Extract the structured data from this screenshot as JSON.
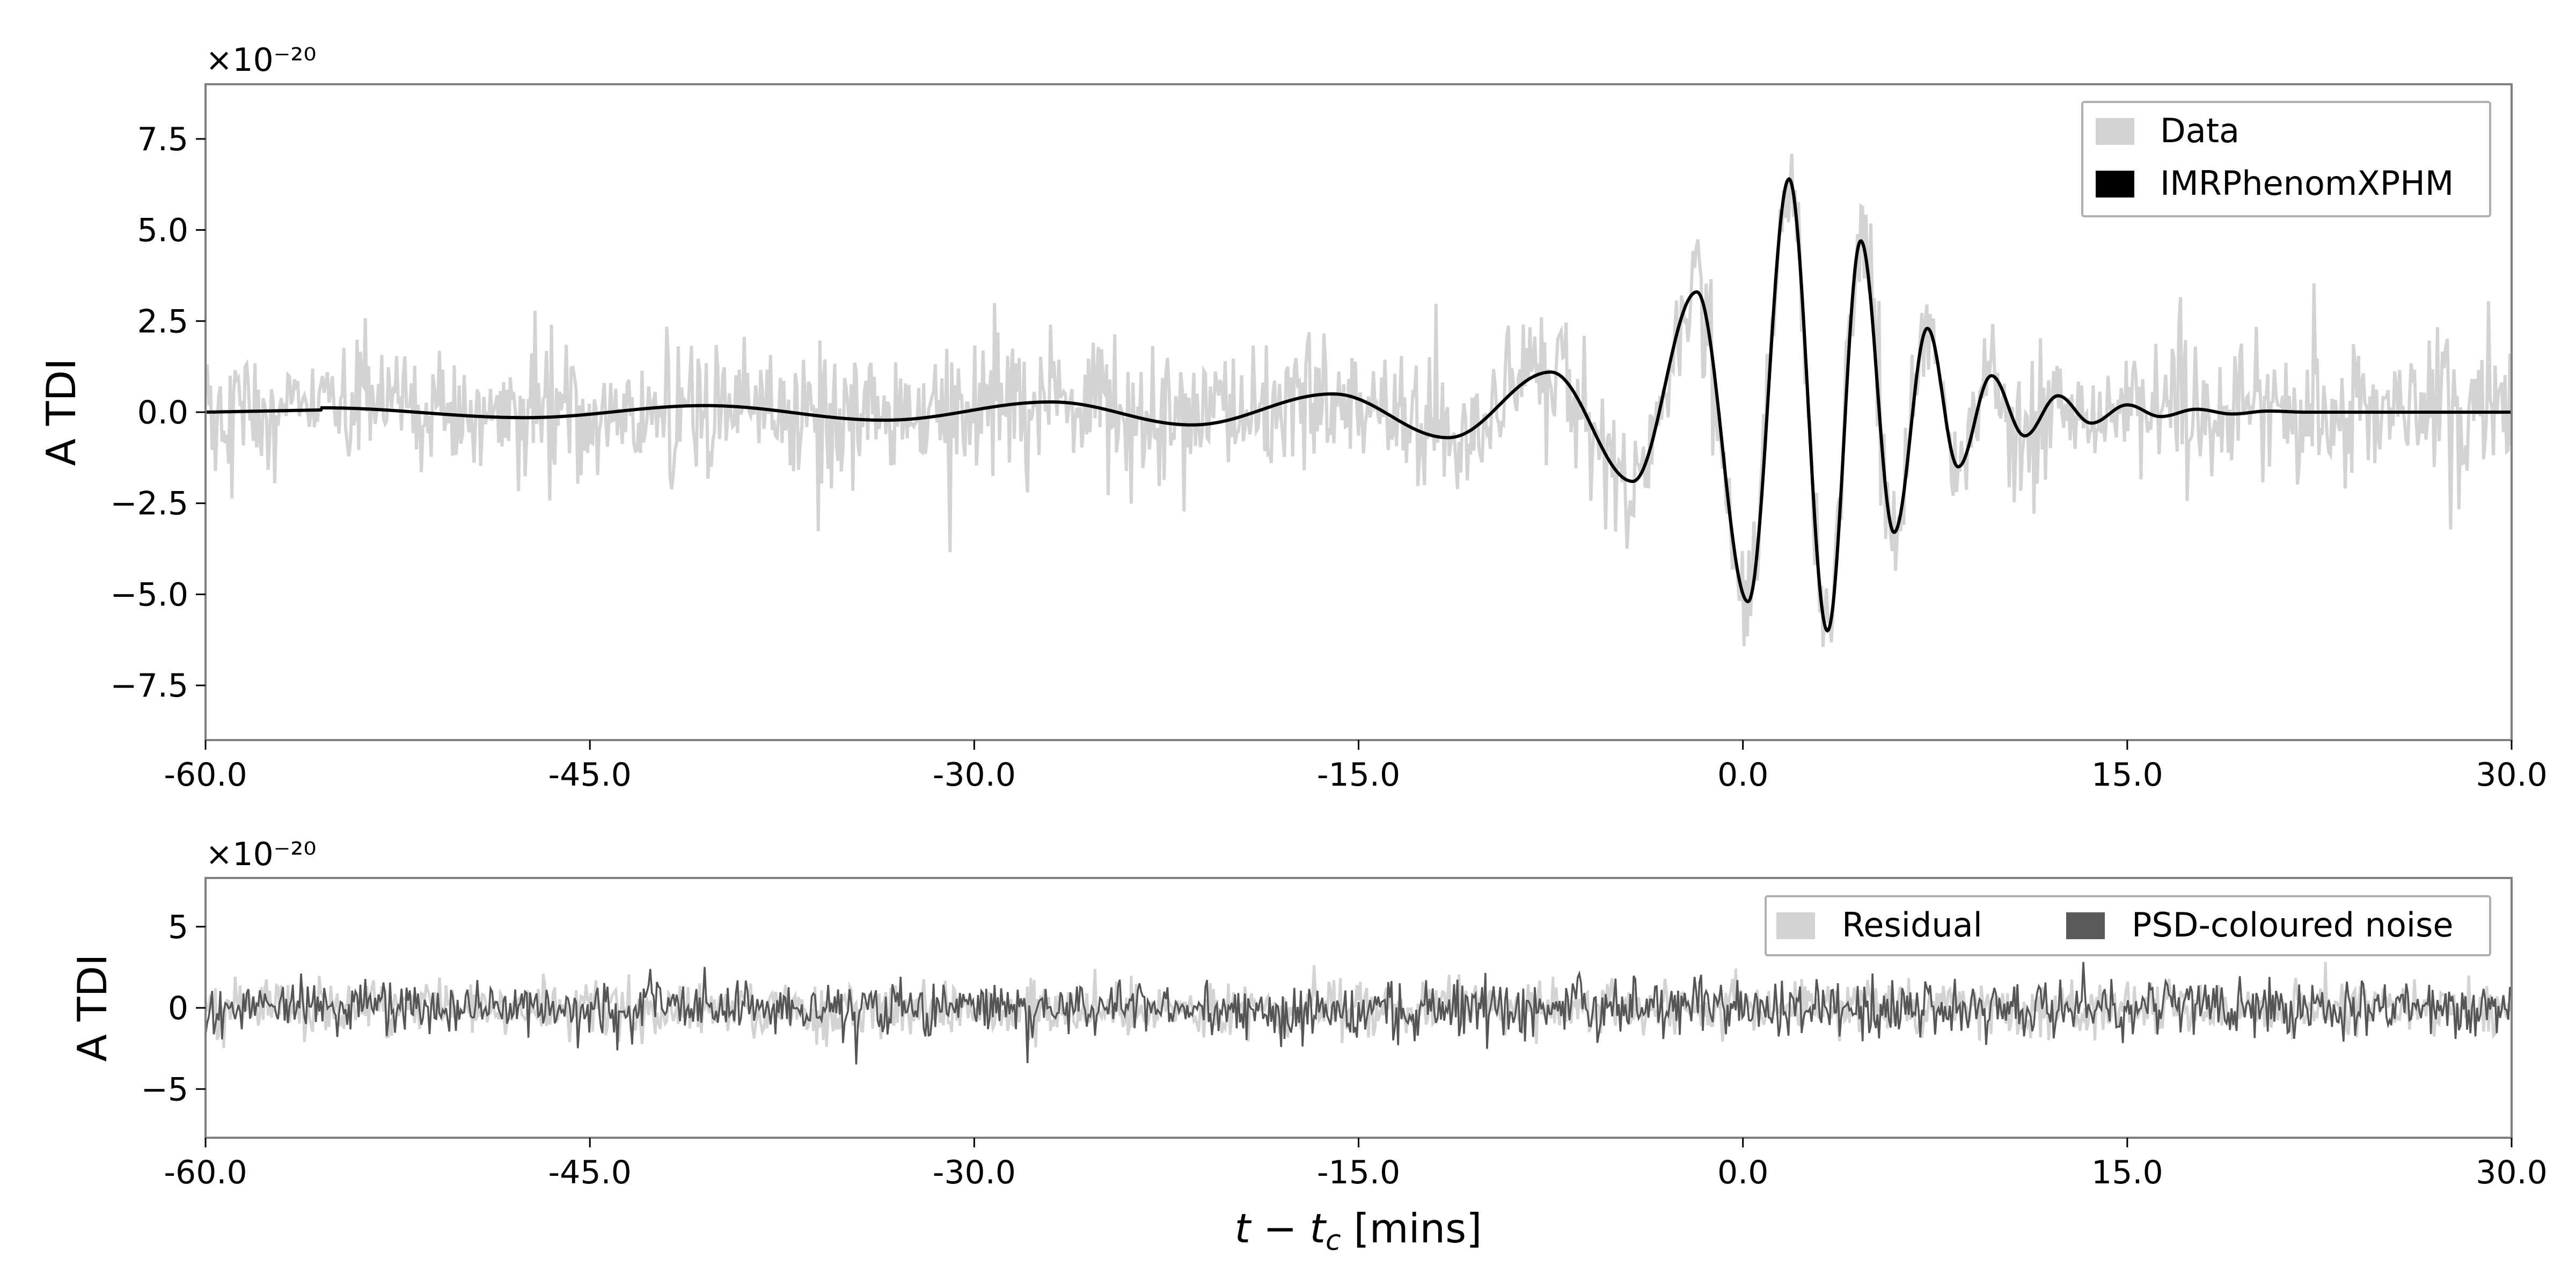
{
  "chart_data": [
    {
      "type": "line",
      "panel": "top",
      "ylabel": "A TDI",
      "y_exponent": "×10⁻²⁰",
      "xlim": [
        -60,
        30
      ],
      "ylim": [
        -9,
        9
      ],
      "xticks": [
        "-60.0",
        "-45.0",
        "-30.0",
        "-15.0",
        "0.0",
        "15.0",
        "30.0"
      ],
      "yticks": [
        "−7.5",
        "−5.0",
        "−2.5",
        "0.0",
        "2.5",
        "5.0",
        "7.5"
      ],
      "legend_placement": "top-right",
      "legend": [
        "Data",
        "IMRPhenomXPHM"
      ],
      "series": [
        {
          "name": "Data",
          "color": "#d3d3d3",
          "style": "noisy band around the model waveform",
          "noise_sigma": 0.9,
          "amplitude_peak": [
            8.0,
            -7.2
          ]
        },
        {
          "name": "IMRPhenomXPHM",
          "color": "#000000",
          "extrema": [
            {
              "t": -55.5,
              "y": 0.12
            },
            {
              "t": -47.5,
              "y": -0.15
            },
            {
              "t": -40.5,
              "y": 0.18
            },
            {
              "t": -33.5,
              "y": -0.22
            },
            {
              "t": -27.0,
              "y": 0.28
            },
            {
              "t": -21.5,
              "y": -0.35
            },
            {
              "t": -16.0,
              "y": 0.5
            },
            {
              "t": -11.5,
              "y": -0.7
            },
            {
              "t": -7.5,
              "y": 1.1
            },
            {
              "t": -4.3,
              "y": -1.9
            },
            {
              "t": -1.8,
              "y": 3.3
            },
            {
              "t": 0.2,
              "y": -5.2
            },
            {
              "t": 1.8,
              "y": 6.4
            },
            {
              "t": 3.3,
              "y": -6.0
            },
            {
              "t": 4.6,
              "y": 4.7
            },
            {
              "t": 5.9,
              "y": -3.3
            },
            {
              "t": 7.2,
              "y": 2.3
            },
            {
              "t": 8.4,
              "y": -1.5
            },
            {
              "t": 9.7,
              "y": 1.0
            },
            {
              "t": 11.0,
              "y": -0.65
            },
            {
              "t": 12.3,
              "y": 0.45
            },
            {
              "t": 13.6,
              "y": -0.3
            },
            {
              "t": 15.0,
              "y": 0.2
            },
            {
              "t": 16.3,
              "y": -0.12
            },
            {
              "t": 17.7,
              "y": 0.08
            },
            {
              "t": 19.1,
              "y": -0.05
            },
            {
              "t": 20.5,
              "y": 0.03
            },
            {
              "t": 22.0,
              "y": 0.0
            },
            {
              "t": 30.0,
              "y": 0.0
            }
          ]
        }
      ]
    },
    {
      "type": "line",
      "panel": "bottom",
      "ylabel": "A TDI",
      "xlabel": "t − t_c [mins]",
      "y_exponent": "×10⁻²⁰",
      "xlim": [
        -60,
        30
      ],
      "ylim": [
        -8,
        8
      ],
      "xticks": [
        "-60.0",
        "-45.0",
        "-30.0",
        "-15.0",
        "0.0",
        "15.0",
        "30.0"
      ],
      "yticks": [
        "−5",
        "0",
        "5"
      ],
      "legend_placement": "top-right",
      "legend": [
        "Residual",
        "PSD-coloured noise"
      ],
      "series": [
        {
          "name": "Residual",
          "color": "#d3d3d3",
          "style": "noise",
          "noise_sigma": 0.85
        },
        {
          "name": "PSD-coloured noise",
          "color": "#555555",
          "style": "noise",
          "noise_sigma": 0.85
        }
      ]
    }
  ]
}
